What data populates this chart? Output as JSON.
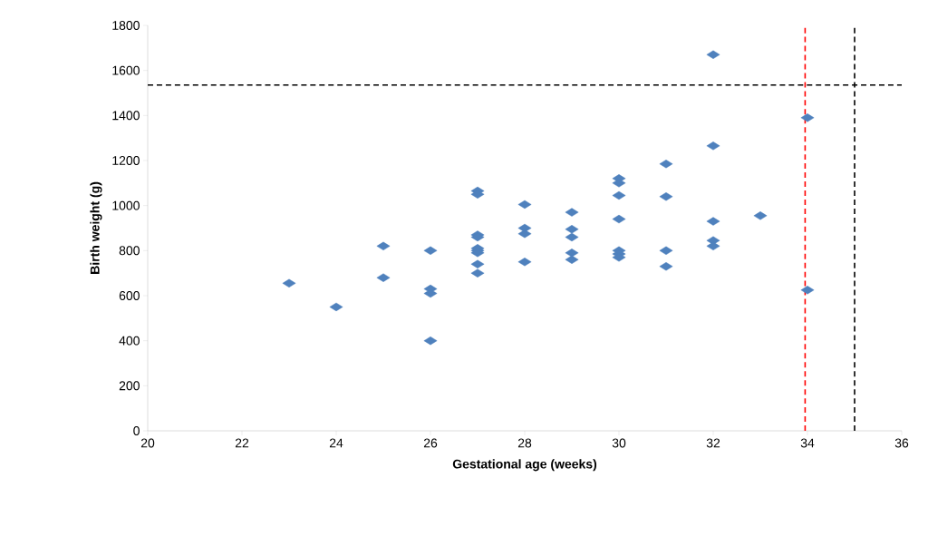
{
  "chart_data": {
    "type": "scatter",
    "xlabel": "Gestational age (weeks)",
    "ylabel": "Birth weight (g)",
    "x": [
      23,
      24,
      25,
      25,
      26,
      26,
      26,
      26,
      27,
      27,
      27,
      27,
      27,
      27,
      27,
      27,
      27,
      28,
      28,
      28,
      28,
      29,
      29,
      29,
      29,
      29,
      30,
      30,
      30,
      30,
      30,
      30,
      30,
      31,
      31,
      31,
      31,
      32,
      32,
      32,
      32,
      32,
      33,
      34,
      34
    ],
    "values": [
      655,
      550,
      820,
      680,
      800,
      630,
      610,
      400,
      1065,
      1050,
      870,
      860,
      810,
      800,
      790,
      740,
      700,
      1005,
      900,
      875,
      750,
      970,
      895,
      860,
      790,
      760,
      1120,
      1100,
      1045,
      940,
      800,
      785,
      770,
      1185,
      1040,
      800,
      730,
      1670,
      1265,
      930,
      845,
      820,
      955,
      1390,
      625
    ],
    "color": "#4f81bd",
    "marker": "diamond",
    "xlim": [
      20,
      36
    ],
    "xticks": [
      20,
      22,
      24,
      26,
      28,
      30,
      32,
      34,
      36
    ],
    "ylim": [
      0,
      1800
    ],
    "yticks": [
      0,
      200,
      400,
      600,
      800,
      1000,
      1200,
      1400,
      1600,
      1800
    ],
    "grid": false,
    "ref_lines": [
      {
        "axis": "y",
        "value": 1535,
        "color": "#000000",
        "line_style": "dashed"
      },
      {
        "axis": "x",
        "value": 35,
        "color": "#000000",
        "line_style": "dashed"
      },
      {
        "axis": "x",
        "value": 33.95,
        "color": "#ff0000",
        "line_style": "dashed"
      }
    ]
  }
}
